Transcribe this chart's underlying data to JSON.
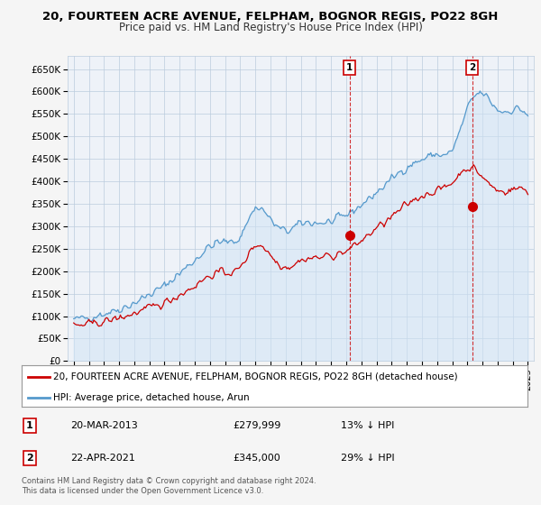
{
  "title": "20, FOURTEEN ACRE AVENUE, FELPHAM, BOGNOR REGIS, PO22 8GH",
  "subtitle": "Price paid vs. HM Land Registry's House Price Index (HPI)",
  "red_label": "20, FOURTEEN ACRE AVENUE, FELPHAM, BOGNOR REGIS, PO22 8GH (detached house)",
  "blue_label": "HPI: Average price, detached house, Arun",
  "annotation1": [
    "1",
    "20-MAR-2013",
    "£279,999",
    "13% ↓ HPI"
  ],
  "annotation2": [
    "2",
    "22-APR-2021",
    "£345,000",
    "29% ↓ HPI"
  ],
  "footer": "Contains HM Land Registry data © Crown copyright and database right 2024.\nThis data is licensed under the Open Government Licence v3.0.",
  "ylim": [
    0,
    680000
  ],
  "yticks": [
    0,
    50000,
    100000,
    150000,
    200000,
    250000,
    300000,
    350000,
    400000,
    450000,
    500000,
    550000,
    600000,
    650000
  ],
  "background_color": "#f5f5f5",
  "plot_bg": "#eef2f8",
  "red_color": "#cc0000",
  "blue_color": "#5599cc",
  "blue_fill": "#d0e4f5",
  "grid_color": "#bbccdd",
  "sale1_x": 2013.22,
  "sale1_y": 279999,
  "sale2_x": 2021.31,
  "sale2_y": 345000,
  "hpi_annual": [
    1995,
    1996,
    1997,
    1998,
    1999,
    2000,
    2001,
    2002,
    2003,
    2004,
    2005,
    2006,
    2007,
    2008,
    2009,
    2010,
    2011,
    2012,
    2013,
    2014,
    2015,
    2016,
    2017,
    2018,
    2019,
    2020,
    2021,
    2022,
    2023,
    2024,
    2025
  ],
  "hpi_vals": [
    92000,
    98000,
    106000,
    116000,
    130000,
    148000,
    168000,
    196000,
    225000,
    255000,
    265000,
    278000,
    340000,
    315000,
    290000,
    305000,
    308000,
    310000,
    325000,
    348000,
    375000,
    405000,
    432000,
    448000,
    460000,
    470000,
    560000,
    595000,
    560000,
    560000,
    545000
  ],
  "red_annual": [
    1995,
    1996,
    1997,
    1998,
    1999,
    2000,
    2001,
    2002,
    2003,
    2004,
    2005,
    2006,
    2007,
    2008,
    2009,
    2010,
    2011,
    2012,
    2013,
    2014,
    2015,
    2016,
    2017,
    2018,
    2019,
    2020,
    2021,
    2022,
    2023,
    2024,
    2025
  ],
  "red_vals": [
    78000,
    82000,
    88000,
    96000,
    106000,
    118000,
    130000,
    148000,
    168000,
    190000,
    198000,
    208000,
    258000,
    236000,
    210000,
    224000,
    230000,
    235000,
    245000,
    268000,
    295000,
    320000,
    348000,
    368000,
    380000,
    398000,
    430000,
    410000,
    380000,
    382000,
    378000
  ],
  "xlim_left": 1994.6,
  "xlim_right": 2025.4
}
